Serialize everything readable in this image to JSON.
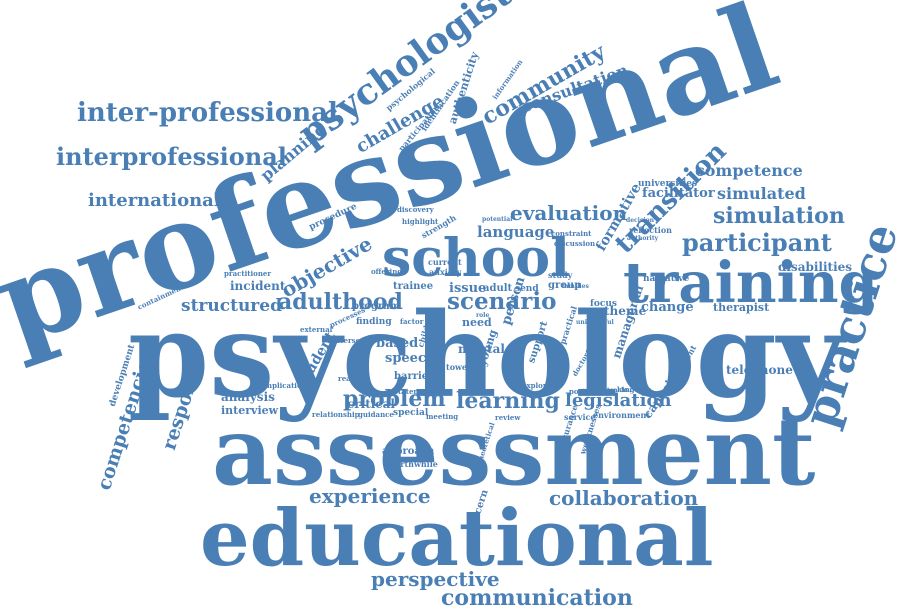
{
  "color": "#4a7fb5",
  "words": [
    {
      "text": "professional"
    },
    {
      "text": "psychology"
    },
    {
      "text": "assessment"
    },
    {
      "text": "educational"
    },
    {
      "text": "school"
    },
    {
      "text": "training"
    },
    {
      "text": "practice"
    },
    {
      "text": "psychologist"
    },
    {
      "text": "community"
    },
    {
      "text": "inter-professional"
    },
    {
      "text": "interprofessional"
    },
    {
      "text": "international"
    },
    {
      "text": "challenge"
    },
    {
      "text": "planning"
    },
    {
      "text": "consultation"
    },
    {
      "text": "competence"
    },
    {
      "text": "simulated"
    },
    {
      "text": "simulation"
    },
    {
      "text": "participant"
    },
    {
      "text": "transition"
    },
    {
      "text": "formative"
    },
    {
      "text": "facilitator"
    },
    {
      "text": "evaluation"
    },
    {
      "text": "language"
    },
    {
      "text": "objective"
    },
    {
      "text": "adulthood"
    },
    {
      "text": "scenario"
    },
    {
      "text": "structured"
    },
    {
      "text": "problem"
    },
    {
      "text": "learning"
    },
    {
      "text": "legislation"
    },
    {
      "text": "experience"
    },
    {
      "text": "collaboration"
    },
    {
      "text": "competencies"
    },
    {
      "text": "response"
    },
    {
      "text": "perspective"
    },
    {
      "text": "communication"
    },
    {
      "text": "disabilities"
    },
    {
      "text": "telephone"
    },
    {
      "text": "therapist"
    },
    {
      "text": "change"
    },
    {
      "text": "theme"
    },
    {
      "text": "managerial"
    },
    {
      "text": "capacity"
    },
    {
      "text": "student"
    },
    {
      "text": "incident"
    },
    {
      "text": "analysis"
    },
    {
      "text": "interview"
    },
    {
      "text": "critical"
    },
    {
      "text": "speech"
    },
    {
      "text": "based"
    },
    {
      "text": "issue"
    },
    {
      "text": "adult"
    },
    {
      "text": "person"
    },
    {
      "text": "young"
    },
    {
      "text": "mental"
    },
    {
      "text": "need"
    },
    {
      "text": "development"
    },
    {
      "text": "approach"
    },
    {
      "text": "concern"
    },
    {
      "text": "universities"
    },
    {
      "text": "trainee"
    },
    {
      "text": "procedure"
    },
    {
      "text": "authenticity"
    },
    {
      "text": "program"
    },
    {
      "text": "finding"
    },
    {
      "text": "barrier"
    },
    {
      "text": "support"
    },
    {
      "text": "focus"
    },
    {
      "text": "narrative"
    },
    {
      "text": "reflection"
    },
    {
      "text": "group"
    },
    {
      "text": "send"
    },
    {
      "text": "study"
    },
    {
      "text": "strength"
    },
    {
      "text": "current"
    },
    {
      "text": "anxiety"
    },
    {
      "text": "containment"
    },
    {
      "text": "practitioner"
    },
    {
      "text": "psychological"
    },
    {
      "text": "participation"
    },
    {
      "text": "identification"
    },
    {
      "text": "information"
    },
    {
      "text": "discovery"
    },
    {
      "text": "highlight"
    },
    {
      "text": "offering"
    },
    {
      "text": "implication"
    },
    {
      "text": "relationship"
    },
    {
      "text": "special"
    },
    {
      "text": "meeting"
    },
    {
      "text": "worthwhile"
    },
    {
      "text": "theoretical"
    },
    {
      "text": "reassurance"
    },
    {
      "text": "weaknesses"
    },
    {
      "text": "environment"
    },
    {
      "text": "service"
    },
    {
      "text": "positive"
    },
    {
      "text": "review"
    },
    {
      "text": "kingdom"
    },
    {
      "text": "comment"
    },
    {
      "text": "framework"
    },
    {
      "text": "practical"
    },
    {
      "text": "doctoral"
    },
    {
      "text": "statement"
    },
    {
      "text": "reaction"
    },
    {
      "text": "guidance"
    },
    {
      "text": "tower"
    },
    {
      "text": "child"
    },
    {
      "text": "explore"
    },
    {
      "text": "factor"
    },
    {
      "text": "processes"
    },
    {
      "text": "adverse"
    },
    {
      "text": "external"
    },
    {
      "text": "constraint"
    },
    {
      "text": "discussion"
    },
    {
      "text": "potential"
    },
    {
      "text": "decision"
    },
    {
      "text": "authority"
    },
    {
      "text": "teacher"
    },
    {
      "text": "united"
    },
    {
      "text": "useful"
    },
    {
      "text": "families"
    },
    {
      "text": "role"
    }
  ]
}
